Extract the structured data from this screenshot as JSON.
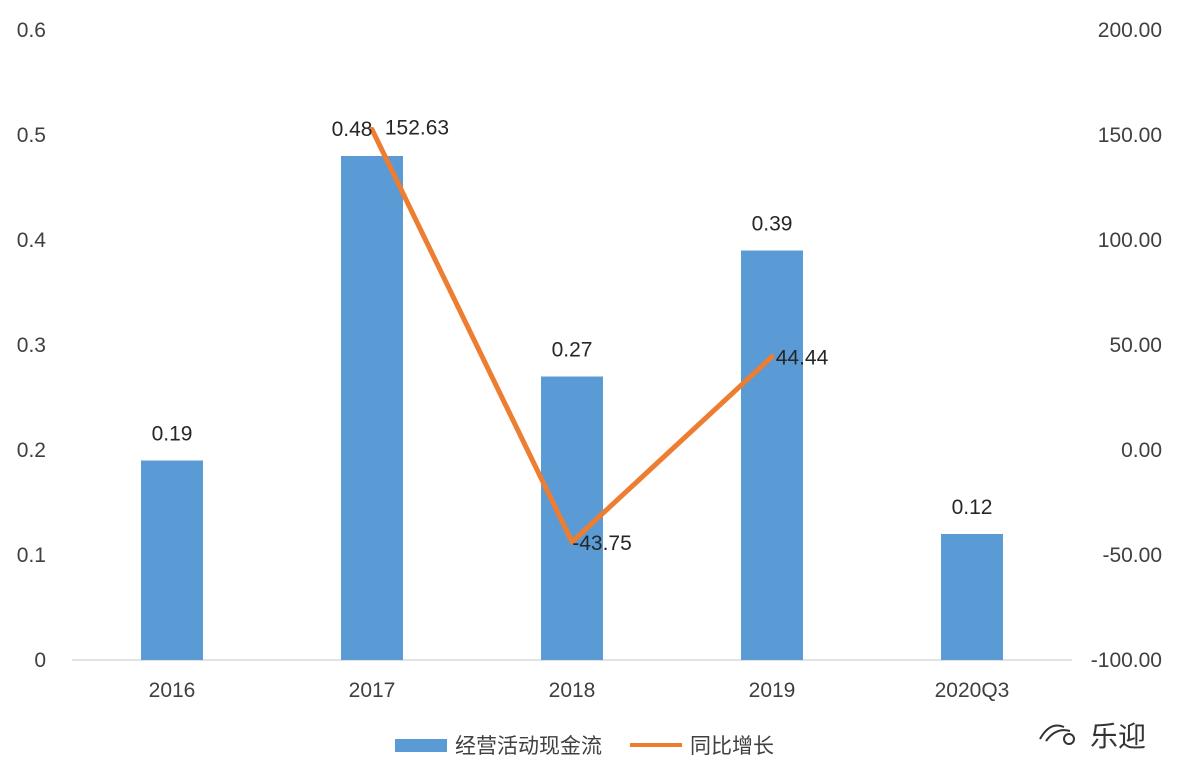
{
  "chart_data": {
    "type": "bar",
    "categories": [
      "2016",
      "2017",
      "2018",
      "2019",
      "2020Q3"
    ],
    "series": [
      {
        "name": "经营活动现金流",
        "type": "bar",
        "axis": "left",
        "color": "#5b9bd5",
        "values": [
          0.19,
          0.48,
          0.27,
          0.39,
          0.12
        ],
        "labels": [
          "0.19",
          "0.48",
          "0.27",
          "0.39",
          "0.12"
        ]
      },
      {
        "name": "同比增长",
        "type": "line",
        "axis": "right",
        "color": "#ed7d31",
        "values": [
          null,
          152.63,
          -43.75,
          44.44,
          null
        ],
        "labels": [
          "",
          "152.63",
          "-43.75",
          "44.44",
          ""
        ]
      }
    ],
    "y_left": {
      "min": 0,
      "max": 0.6,
      "ticks": [
        "0",
        "0.1",
        "0.2",
        "0.3",
        "0.4",
        "0.5",
        "0.6"
      ]
    },
    "y_right": {
      "min": -100,
      "max": 200,
      "ticks": [
        "-100.00",
        "-50.00",
        "0.00",
        "50.00",
        "100.00",
        "150.00",
        "200.00"
      ]
    },
    "grid": false,
    "legend_position": "bottom"
  },
  "legend": {
    "bar_label": "经营活动现金流",
    "line_label": "同比增长"
  },
  "watermark": {
    "text": "乐迎",
    "icon": "wechat-icon"
  }
}
